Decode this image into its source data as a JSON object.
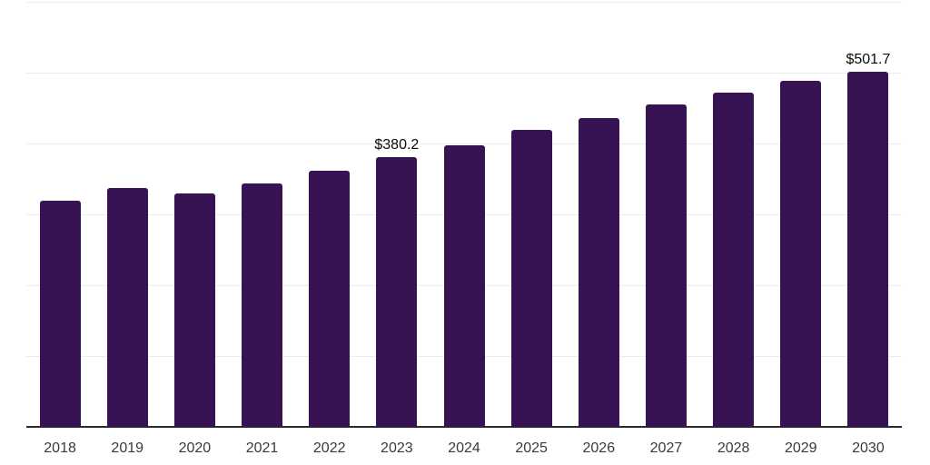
{
  "chart_data": {
    "type": "bar",
    "title": "",
    "xlabel": "",
    "ylabel": "",
    "categories": [
      "2018",
      "2019",
      "2020",
      "2021",
      "2022",
      "2023",
      "2024",
      "2025",
      "2026",
      "2027",
      "2028",
      "2029",
      "2030"
    ],
    "values": [
      319,
      337,
      329,
      344,
      361.5,
      380.2,
      398,
      419,
      435.5,
      454.5,
      472,
      488,
      501.7
    ],
    "point_labels": [
      "",
      "",
      "",
      "",
      "",
      "$380.2",
      "",
      "",
      "",
      "",
      "",
      "",
      "$501.7"
    ],
    "ylim": [
      0,
      600
    ],
    "grid_step": 100,
    "grid": "horizontal-only",
    "y_tick_labels_shown": false,
    "legend": "none",
    "colors": {
      "bar": "#371353",
      "gridline": "#ededed",
      "axis_line": "#2b2b2b",
      "tick_label": "#3a3a3a",
      "point_label": "#0a0a0a",
      "background": "#ffffff"
    }
  }
}
